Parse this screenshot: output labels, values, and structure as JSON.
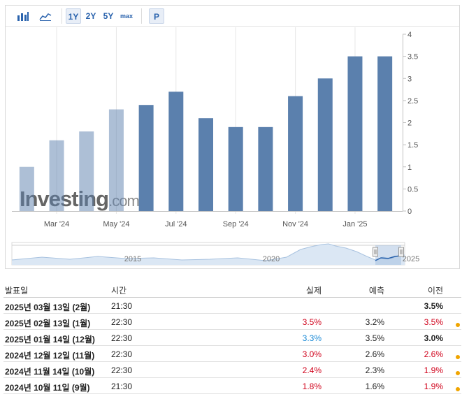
{
  "toolbar": {
    "ranges": [
      "1Y",
      "2Y",
      "5Y",
      "max"
    ],
    "active_range": "1Y",
    "p_label": "P"
  },
  "chart_data": {
    "type": "bar",
    "categories": [
      "Feb '24",
      "Mar '24",
      "Apr '24",
      "May '24",
      "Jun '24",
      "Jul '24",
      "Aug '24",
      "Sep '24",
      "Oct '24",
      "Nov '24",
      "Dec '24",
      "Jan '25",
      "Feb '25"
    ],
    "values": [
      1.0,
      1.6,
      1.8,
      2.3,
      2.4,
      2.7,
      2.1,
      1.9,
      1.9,
      2.6,
      3.0,
      3.5,
      3.5
    ],
    "x_tick_labels": [
      {
        "index": 1,
        "label": "Mar '24"
      },
      {
        "index": 3,
        "label": "May '24"
      },
      {
        "index": 5,
        "label": "Jul '24"
      },
      {
        "index": 7,
        "label": "Sep '24"
      },
      {
        "index": 9,
        "label": "Nov '24"
      },
      {
        "index": 11,
        "label": "Jan '25"
      }
    ],
    "ylim": [
      0,
      4
    ],
    "y_ticks": [
      "0",
      "0.5",
      "1",
      "1.5",
      "2",
      "2.5",
      "3",
      "3.5",
      "4"
    ],
    "bar_color": "#5b80ad",
    "grid": "vertical",
    "watermark": "Investing.com"
  },
  "navigator": {
    "labels": [
      "2015",
      "2020",
      "2025"
    ]
  },
  "table": {
    "headers": {
      "date": "발표일",
      "time": "시간",
      "actual": "실제",
      "forecast": "예측",
      "previous": "이전"
    },
    "rows": [
      {
        "date": "2025년 03월 13일 (2월)",
        "time": "21:30",
        "actual": "",
        "actual_color": "",
        "forecast": "",
        "previous": "3.5%",
        "previous_color": "#222222",
        "previous_bold": true,
        "dot": false
      },
      {
        "date": "2025년 02월 13일 (1월)",
        "time": "22:30",
        "actual": "3.5%",
        "actual_color": "#d0021b",
        "forecast": "3.2%",
        "previous": "3.5%",
        "previous_color": "#d0021b",
        "previous_bold": false,
        "dot": true
      },
      {
        "date": "2025년 01월 14일 (12월)",
        "time": "22:30",
        "actual": "3.3%",
        "actual_color": "#1a8ad6",
        "forecast": "3.5%",
        "previous": "3.0%",
        "previous_color": "#222222",
        "previous_bold": true,
        "dot": false
      },
      {
        "date": "2024년 12월 12일 (11월)",
        "time": "22:30",
        "actual": "3.0%",
        "actual_color": "#d0021b",
        "forecast": "2.6%",
        "previous": "2.6%",
        "previous_color": "#d0021b",
        "previous_bold": false,
        "dot": true
      },
      {
        "date": "2024년 11월 14일 (10월)",
        "time": "22:30",
        "actual": "2.4%",
        "actual_color": "#d0021b",
        "forecast": "2.3%",
        "previous": "1.9%",
        "previous_color": "#d0021b",
        "previous_bold": false,
        "dot": true
      },
      {
        "date": "2024년 10월 11일 (9월)",
        "time": "21:30",
        "actual": "1.8%",
        "actual_color": "#d0021b",
        "forecast": "1.6%",
        "previous": "1.9%",
        "previous_color": "#d0021b",
        "previous_bold": false,
        "dot": true
      }
    ]
  }
}
